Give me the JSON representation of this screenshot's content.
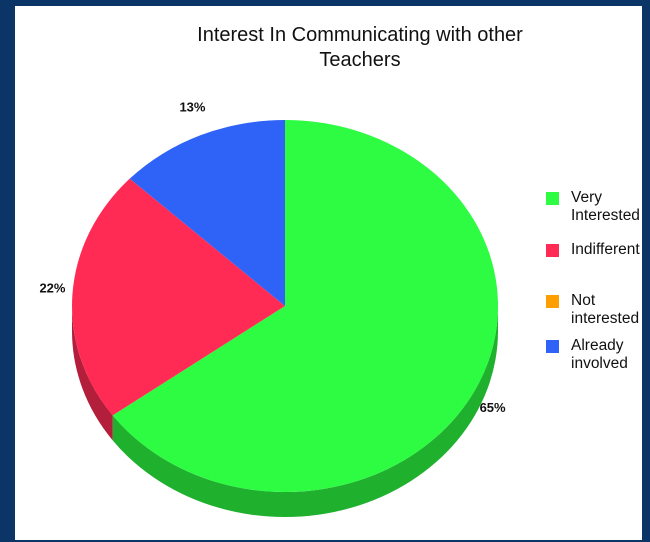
{
  "chart_data": {
    "type": "pie",
    "title": "Interest In Communicating with other Teachers",
    "title_lines": [
      "Interest In Communicating with other",
      "Teachers"
    ],
    "legend_position": "right",
    "slices": [
      {
        "label": "Very Interested",
        "label_lines": [
          "Very",
          "Interested"
        ],
        "value": 65,
        "value_label": "65%",
        "color": "#2dfc42"
      },
      {
        "label": "Indifferent",
        "label_lines": [
          "Indifferent"
        ],
        "value": 22,
        "value_label": "22%",
        "color": "#ff2b54"
      },
      {
        "label": "Not interested",
        "label_lines": [
          "Not",
          "interested"
        ],
        "value": 0,
        "value_label": "",
        "color": "#ff9e02"
      },
      {
        "label": "Already involved",
        "label_lines": [
          "Already",
          "involved"
        ],
        "value": 13,
        "value_label": "13%",
        "color": "#2f63f8"
      }
    ]
  },
  "colors": {
    "frame_background": "#0b3566",
    "panel_background": "#ffffff"
  }
}
